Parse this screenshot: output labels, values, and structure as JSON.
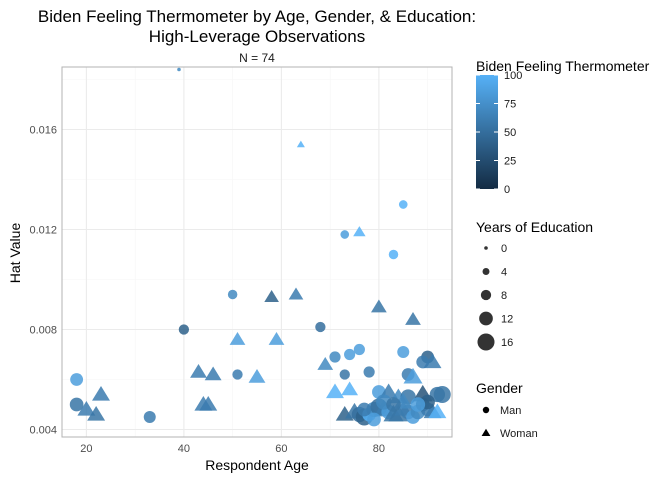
{
  "chart_data": {
    "type": "scatter",
    "title_lines": [
      "Biden Feeling Thermometer by Age, Gender, & Education:",
      "High-Leverage Observations"
    ],
    "subtitle": "N = 74",
    "xlabel": "Respondent Age",
    "ylabel": "Hat Value",
    "xlim": [
      15,
      95
    ],
    "ylim": [
      0.0037,
      0.0185
    ],
    "x_ticks": [
      20,
      40,
      60,
      80
    ],
    "y_ticks": [
      0.004,
      0.008,
      0.012,
      0.016
    ],
    "y_tick_labels": [
      "0.004",
      "0.008",
      "0.012",
      "0.016"
    ],
    "grid": true,
    "colors": {
      "low": "#132b43",
      "high": "#56b1f7",
      "grid_major": "#ebebeb",
      "grid_minor": "#f5f5f5",
      "panel_border": "#b3b3b3"
    },
    "legends": {
      "color": {
        "title": "Biden Feeling Thermometer",
        "ticks": [
          0,
          25,
          50,
          75,
          100
        ],
        "tick_labels": [
          "0",
          "25",
          "50",
          "75",
          "100"
        ],
        "range": [
          0,
          100
        ]
      },
      "size": {
        "title": "Years of Education",
        "values": [
          0,
          4,
          8,
          12,
          16
        ],
        "labels": [
          "0",
          "4",
          "8",
          "12",
          "16"
        ]
      },
      "shape": {
        "title": "Gender",
        "entries": [
          {
            "label": "Man",
            "shape": "circle"
          },
          {
            "label": "Woman",
            "shape": "triangle"
          }
        ]
      }
    },
    "points": [
      {
        "age": 39,
        "hat": 0.0184,
        "therm": 70,
        "educ": 0,
        "gender": "Man"
      },
      {
        "age": 64,
        "hat": 0.0154,
        "therm": 100,
        "educ": 3,
        "gender": "Woman"
      },
      {
        "age": 85,
        "hat": 0.013,
        "therm": 100,
        "educ": 6,
        "gender": "Man"
      },
      {
        "age": 73,
        "hat": 0.0118,
        "therm": 85,
        "educ": 6,
        "gender": "Man"
      },
      {
        "age": 76,
        "hat": 0.0119,
        "therm": 100,
        "educ": 7,
        "gender": "Woman"
      },
      {
        "age": 83,
        "hat": 0.011,
        "therm": 100,
        "educ": 7,
        "gender": "Man"
      },
      {
        "age": 50,
        "hat": 0.0094,
        "therm": 70,
        "educ": 7,
        "gender": "Man"
      },
      {
        "age": 58,
        "hat": 0.0093,
        "therm": 40,
        "educ": 9,
        "gender": "Woman"
      },
      {
        "age": 63,
        "hat": 0.0094,
        "therm": 60,
        "educ": 9,
        "gender": "Woman"
      },
      {
        "age": 80,
        "hat": 0.0089,
        "therm": 55,
        "educ": 10,
        "gender": "Woman"
      },
      {
        "age": 87,
        "hat": 0.0084,
        "therm": 55,
        "educ": 10,
        "gender": "Woman"
      },
      {
        "age": 40,
        "hat": 0.008,
        "therm": 40,
        "educ": 8,
        "gender": "Man"
      },
      {
        "age": 68,
        "hat": 0.0081,
        "therm": 50,
        "educ": 8,
        "gender": "Man"
      },
      {
        "age": 51,
        "hat": 0.0076,
        "therm": 85,
        "educ": 10,
        "gender": "Woman"
      },
      {
        "age": 59,
        "hat": 0.0076,
        "therm": 85,
        "educ": 10,
        "gender": "Woman"
      },
      {
        "age": 76,
        "hat": 0.0072,
        "therm": 85,
        "educ": 9,
        "gender": "Man"
      },
      {
        "age": 71,
        "hat": 0.0069,
        "therm": 70,
        "educ": 9,
        "gender": "Man"
      },
      {
        "age": 74,
        "hat": 0.007,
        "therm": 85,
        "educ": 9,
        "gender": "Man"
      },
      {
        "age": 85,
        "hat": 0.0071,
        "therm": 85,
        "educ": 10,
        "gender": "Man"
      },
      {
        "age": 90,
        "hat": 0.0069,
        "therm": 40,
        "educ": 11,
        "gender": "Man"
      },
      {
        "age": 89,
        "hat": 0.0067,
        "therm": 60,
        "educ": 11,
        "gender": "Man"
      },
      {
        "age": 91,
        "hat": 0.0067,
        "therm": 60,
        "educ": 12,
        "gender": "Woman"
      },
      {
        "age": 69,
        "hat": 0.0066,
        "therm": 70,
        "educ": 10,
        "gender": "Woman"
      },
      {
        "age": 43,
        "hat": 0.0063,
        "therm": 60,
        "educ": 11,
        "gender": "Woman"
      },
      {
        "age": 46,
        "hat": 0.0062,
        "therm": 60,
        "educ": 11,
        "gender": "Woman"
      },
      {
        "age": 51,
        "hat": 0.0062,
        "therm": 60,
        "educ": 8,
        "gender": "Man"
      },
      {
        "age": 55,
        "hat": 0.0061,
        "therm": 85,
        "educ": 11,
        "gender": "Woman"
      },
      {
        "age": 73,
        "hat": 0.0062,
        "therm": 55,
        "educ": 8,
        "gender": "Man"
      },
      {
        "age": 78,
        "hat": 0.0063,
        "therm": 60,
        "educ": 9,
        "gender": "Man"
      },
      {
        "age": 86,
        "hat": 0.0062,
        "therm": 60,
        "educ": 11,
        "gender": "Man"
      },
      {
        "age": 87,
        "hat": 0.0061,
        "therm": 85,
        "educ": 13,
        "gender": "Woman"
      },
      {
        "age": 18,
        "hat": 0.006,
        "therm": 85,
        "educ": 11,
        "gender": "Man"
      },
      {
        "age": 71,
        "hat": 0.0055,
        "therm": 100,
        "educ": 12,
        "gender": "Woman"
      },
      {
        "age": 74,
        "hat": 0.0056,
        "therm": 100,
        "educ": 11,
        "gender": "Woman"
      },
      {
        "age": 80,
        "hat": 0.0055,
        "therm": 85,
        "educ": 12,
        "gender": "Man"
      },
      {
        "age": 82,
        "hat": 0.0055,
        "therm": 60,
        "educ": 12,
        "gender": "Woman"
      },
      {
        "age": 84,
        "hat": 0.0053,
        "therm": 70,
        "educ": 12,
        "gender": "Woman"
      },
      {
        "age": 86,
        "hat": 0.0053,
        "therm": 55,
        "educ": 14,
        "gender": "Man"
      },
      {
        "age": 89,
        "hat": 0.0054,
        "therm": 30,
        "educ": 14,
        "gender": "Woman"
      },
      {
        "age": 92,
        "hat": 0.0054,
        "therm": 55,
        "educ": 14,
        "gender": "Man"
      },
      {
        "age": 93,
        "hat": 0.0054,
        "therm": 55,
        "educ": 16,
        "gender": "Man"
      },
      {
        "age": 23,
        "hat": 0.0054,
        "therm": 60,
        "educ": 12,
        "gender": "Woman"
      },
      {
        "age": 18,
        "hat": 0.005,
        "therm": 55,
        "educ": 12,
        "gender": "Man"
      },
      {
        "age": 20,
        "hat": 0.0048,
        "therm": 60,
        "educ": 12,
        "gender": "Woman"
      },
      {
        "age": 22,
        "hat": 0.0046,
        "therm": 55,
        "educ": 12,
        "gender": "Woman"
      },
      {
        "age": 33,
        "hat": 0.0045,
        "therm": 60,
        "educ": 10,
        "gender": "Man"
      },
      {
        "age": 44,
        "hat": 0.005,
        "therm": 60,
        "educ": 12,
        "gender": "Woman"
      },
      {
        "age": 45,
        "hat": 0.005,
        "therm": 60,
        "educ": 12,
        "gender": "Woman"
      },
      {
        "age": 73,
        "hat": 0.0046,
        "therm": 40,
        "educ": 12,
        "gender": "Woman"
      },
      {
        "age": 75,
        "hat": 0.0047,
        "therm": 55,
        "educ": 13,
        "gender": "Woman"
      },
      {
        "age": 76,
        "hat": 0.0046,
        "therm": 50,
        "educ": 14,
        "gender": "Man"
      },
      {
        "age": 77,
        "hat": 0.0045,
        "therm": 40,
        "educ": 16,
        "gender": "Man"
      },
      {
        "age": 78,
        "hat": 0.0046,
        "therm": 100,
        "educ": 12,
        "gender": "Man"
      },
      {
        "age": 79,
        "hat": 0.0048,
        "therm": 70,
        "educ": 14,
        "gender": "Man"
      },
      {
        "age": 80,
        "hat": 0.0049,
        "therm": 50,
        "educ": 16,
        "gender": "Man"
      },
      {
        "age": 81,
        "hat": 0.0048,
        "therm": 60,
        "educ": 14,
        "gender": "Woman"
      },
      {
        "age": 82,
        "hat": 0.0047,
        "therm": 85,
        "educ": 13,
        "gender": "Man"
      },
      {
        "age": 83,
        "hat": 0.0046,
        "therm": 55,
        "educ": 14,
        "gender": "Woman"
      },
      {
        "age": 84,
        "hat": 0.0046,
        "therm": 55,
        "educ": 14,
        "gender": "Woman"
      },
      {
        "age": 85,
        "hat": 0.0048,
        "therm": 60,
        "educ": 12,
        "gender": "Woman"
      },
      {
        "age": 86,
        "hat": 0.0047,
        "therm": 60,
        "educ": 13,
        "gender": "Man"
      },
      {
        "age": 87,
        "hat": 0.0045,
        "therm": 85,
        "educ": 12,
        "gender": "Man"
      },
      {
        "age": 88,
        "hat": 0.0047,
        "therm": 70,
        "educ": 13,
        "gender": "Man"
      },
      {
        "age": 89,
        "hat": 0.005,
        "therm": 30,
        "educ": 12,
        "gender": "Man"
      },
      {
        "age": 90,
        "hat": 0.0048,
        "therm": 60,
        "educ": 12,
        "gender": "Man"
      },
      {
        "age": 91,
        "hat": 0.0047,
        "therm": 60,
        "educ": 12,
        "gender": "Woman"
      },
      {
        "age": 92,
        "hat": 0.0047,
        "therm": 100,
        "educ": 12,
        "gender": "Woman"
      },
      {
        "age": 90,
        "hat": 0.0051,
        "therm": 40,
        "educ": 13,
        "gender": "Man"
      },
      {
        "age": 79,
        "hat": 0.0044,
        "therm": 85,
        "educ": 12,
        "gender": "Man"
      },
      {
        "age": 85,
        "hat": 0.0051,
        "therm": 70,
        "educ": 13,
        "gender": "Woman"
      },
      {
        "age": 88,
        "hat": 0.005,
        "therm": 85,
        "educ": 13,
        "gender": "Man"
      },
      {
        "age": 81,
        "hat": 0.0051,
        "therm": 70,
        "educ": 14,
        "gender": "Man"
      },
      {
        "age": 83,
        "hat": 0.005,
        "therm": 55,
        "educ": 13,
        "gender": "Man"
      },
      {
        "age": 77,
        "hat": 0.0048,
        "therm": 60,
        "educ": 12,
        "gender": "Man"
      }
    ]
  }
}
